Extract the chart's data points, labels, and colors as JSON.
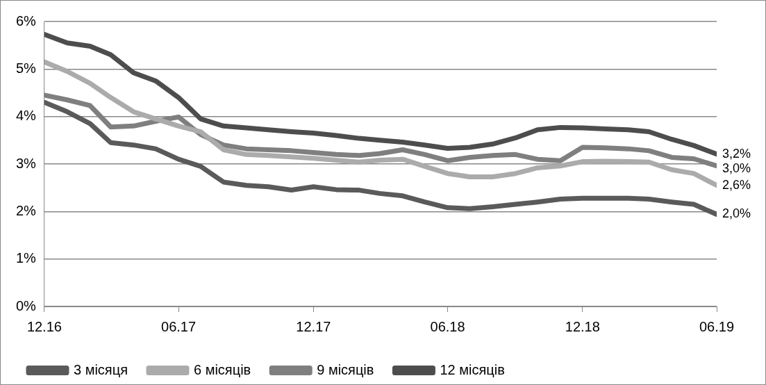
{
  "chart_data": {
    "type": "line",
    "x": [
      "2016-12",
      "2017-01",
      "2017-02",
      "2017-03",
      "2017-04",
      "2017-05",
      "2017-06",
      "2017-07",
      "2017-08",
      "2017-09",
      "2017-10",
      "2017-11",
      "2017-12",
      "2018-01",
      "2018-02",
      "2018-03",
      "2018-04",
      "2018-05",
      "2018-06",
      "2018-07",
      "2018-08",
      "2018-09",
      "2018-10",
      "2018-11",
      "2018-12",
      "2019-01",
      "2019-02",
      "2019-03",
      "2019-04",
      "2019-05",
      "2019-06"
    ],
    "series": [
      {
        "name": "3 місяця",
        "color": "#5a5a5a",
        "values": [
          4.3,
          4.1,
          3.85,
          3.45,
          3.4,
          3.32,
          3.1,
          2.95,
          2.62,
          2.55,
          2.52,
          2.45,
          2.52,
          2.46,
          2.45,
          2.38,
          2.33,
          2.2,
          2.08,
          2.06,
          2.1,
          2.15,
          2.2,
          2.26,
          2.28,
          2.28,
          2.28,
          2.26,
          2.2,
          2.15,
          1.94
        ]
      },
      {
        "name": "6 місяців",
        "color": "#ababab",
        "values": [
          5.15,
          4.95,
          4.7,
          4.4,
          4.1,
          3.95,
          3.8,
          3.68,
          3.3,
          3.2,
          3.18,
          3.15,
          3.12,
          3.08,
          3.04,
          3.08,
          3.1,
          2.95,
          2.8,
          2.73,
          2.73,
          2.8,
          2.92,
          2.96,
          3.05,
          3.06,
          3.05,
          3.04,
          2.88,
          2.8,
          2.55
        ]
      },
      {
        "name": "9 місяців",
        "color": "#7f7f7f",
        "values": [
          4.45,
          4.35,
          4.23,
          3.78,
          3.8,
          3.9,
          3.99,
          3.62,
          3.4,
          3.32,
          3.3,
          3.28,
          3.24,
          3.2,
          3.18,
          3.22,
          3.3,
          3.2,
          3.07,
          3.14,
          3.18,
          3.2,
          3.1,
          3.07,
          3.35,
          3.34,
          3.32,
          3.28,
          3.14,
          3.11,
          2.96
        ]
      },
      {
        "name": "12 місяців",
        "color": "#4d4d4d",
        "values": [
          5.73,
          5.55,
          5.48,
          5.3,
          4.92,
          4.75,
          4.4,
          3.95,
          3.8,
          3.76,
          3.72,
          3.68,
          3.65,
          3.6,
          3.54,
          3.5,
          3.46,
          3.4,
          3.33,
          3.35,
          3.42,
          3.55,
          3.72,
          3.77,
          3.76,
          3.74,
          3.72,
          3.68,
          3.52,
          3.39,
          3.21
        ]
      }
    ],
    "xlim": [
      "2016-12",
      "2019-06"
    ],
    "xticks": [
      {
        "value": "2016-12",
        "label": "12.16"
      },
      {
        "value": "2017-06",
        "label": "06.17"
      },
      {
        "value": "2017-12",
        "label": "12.17"
      },
      {
        "value": "2018-06",
        "label": "06.18"
      },
      {
        "value": "2018-12",
        "label": "12.18"
      },
      {
        "value": "2019-06",
        "label": "06.19"
      }
    ],
    "ylim": [
      0,
      6
    ],
    "yticks": [
      {
        "value": 0,
        "label": "0%"
      },
      {
        "value": 1,
        "label": "1%"
      },
      {
        "value": 2,
        "label": "2%"
      },
      {
        "value": 3,
        "label": "3%"
      },
      {
        "value": 4,
        "label": "4%"
      },
      {
        "value": 5,
        "label": "5%"
      },
      {
        "value": 6,
        "label": "6%"
      }
    ],
    "annotations": [
      {
        "text": "3,2%",
        "x": "2019-06",
        "y": 3.2
      },
      {
        "text": "3,0%",
        "x": "2019-06",
        "y": 2.96
      },
      {
        "text": "2,6%",
        "x": "2019-06",
        "y": 2.55
      },
      {
        "text": "2,0%",
        "x": "2019-06",
        "y": 1.94
      }
    ],
    "grid": "y",
    "legend": "bottom",
    "marker": "none",
    "line_style": "solid"
  }
}
